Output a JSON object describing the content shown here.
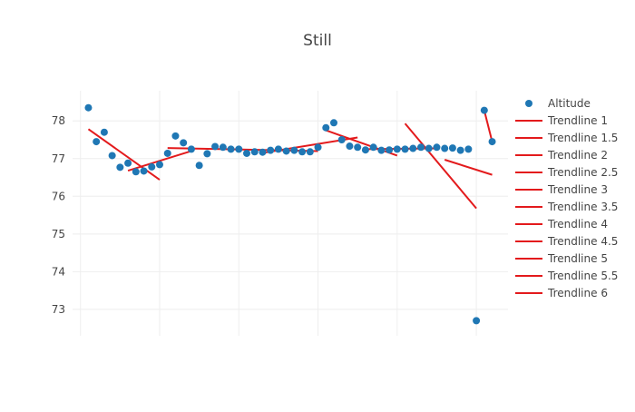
{
  "chart_data": {
    "type": "scatter",
    "title": "Still",
    "xlabel": "",
    "ylabel": "",
    "x_range": [
      -0.1,
      5.4
    ],
    "ylim": [
      72.3,
      78.8
    ],
    "y_ticks": [
      73,
      74,
      75,
      76,
      77,
      78
    ],
    "x_gridlines": [
      0,
      1,
      2,
      3,
      4,
      5
    ],
    "grid": true,
    "show_x_tick_labels": false,
    "legend_position": "right",
    "series": [
      {
        "name": "Altitude",
        "mode": "markers",
        "color": "#1f77b4",
        "x": [
          0.1,
          0.2,
          0.3,
          0.4,
          0.5,
          0.6,
          0.7,
          0.8,
          0.9,
          1.0,
          1.1,
          1.2,
          1.3,
          1.4,
          1.5,
          1.6,
          1.7,
          1.8,
          1.9,
          2.0,
          2.1,
          2.2,
          2.3,
          2.4,
          2.5,
          2.6,
          2.7,
          2.8,
          2.9,
          3.0,
          3.1,
          3.2,
          3.3,
          3.4,
          3.5,
          3.6,
          3.7,
          3.8,
          3.9,
          4.0,
          4.1,
          4.2,
          4.3,
          4.4,
          4.5,
          4.6,
          4.7,
          4.8,
          4.9,
          5.0,
          5.1,
          5.2
        ],
        "y": [
          78.35,
          77.45,
          77.7,
          77.08,
          76.77,
          76.88,
          76.65,
          76.67,
          76.78,
          76.84,
          77.14,
          77.6,
          77.42,
          77.25,
          76.82,
          77.13,
          77.32,
          77.3,
          77.25,
          77.25,
          77.14,
          77.18,
          77.17,
          77.22,
          77.25,
          77.2,
          77.22,
          77.18,
          77.18,
          77.3,
          77.82,
          77.95,
          77.5,
          77.33,
          77.3,
          77.23,
          77.3,
          77.22,
          77.23,
          77.25,
          77.25,
          77.27,
          77.3,
          77.27,
          77.3,
          77.27,
          77.28,
          77.22,
          77.25,
          72.7,
          78.28,
          77.45
        ]
      },
      {
        "name": "Trendline 1",
        "mode": "lines",
        "color": "#e31a1c",
        "x": [
          0.1,
          1.0
        ],
        "y": [
          77.78,
          76.44
        ]
      },
      {
        "name": "Trendline 1.5",
        "mode": "lines",
        "color": "#e31a1c",
        "x": [
          0.6,
          1.4
        ],
        "y": [
          76.68,
          77.2
        ]
      },
      {
        "name": "Trendline 2",
        "mode": "lines",
        "color": "#e31a1c",
        "x": [
          1.1,
          3.0
        ],
        "y": [
          77.28,
          77.2
        ]
      },
      {
        "name": "Trendline 2.5",
        "mode": "lines",
        "color": "#e31a1c",
        "x": [
          2.3,
          3.5
        ],
        "y": [
          77.15,
          77.56
        ]
      },
      {
        "name": "Trendline 3",
        "mode": "lines",
        "color": "#e31a1c",
        "x": [
          3.1,
          4.0
        ],
        "y": [
          77.75,
          77.08
        ]
      },
      {
        "name": "Trendline 3.5",
        "mode": "lines",
        "color": "#e31a1c",
        "x": [
          3.6,
          4.5
        ],
        "y": [
          77.25,
          77.27
        ]
      },
      {
        "name": "Trendline 4",
        "mode": "lines",
        "color": "#e31a1c",
        "x": [
          4.1,
          5.0
        ],
        "y": [
          77.93,
          75.68
        ]
      },
      {
        "name": "Trendline 4.5",
        "mode": "lines",
        "color": "#e31a1c",
        "x": [
          4.6,
          5.2
        ],
        "y": [
          76.97,
          76.57
        ]
      },
      {
        "name": "Trendline 5",
        "mode": "lines",
        "color": "#e31a1c",
        "x": [
          5.1,
          5.2
        ],
        "y": [
          78.28,
          77.45
        ]
      },
      {
        "name": "Trendline 5.5",
        "mode": "lines",
        "color": "#e31a1c",
        "x": [],
        "y": []
      },
      {
        "name": "Trendline 6",
        "mode": "lines",
        "color": "#e31a1c",
        "x": [],
        "y": []
      }
    ]
  }
}
